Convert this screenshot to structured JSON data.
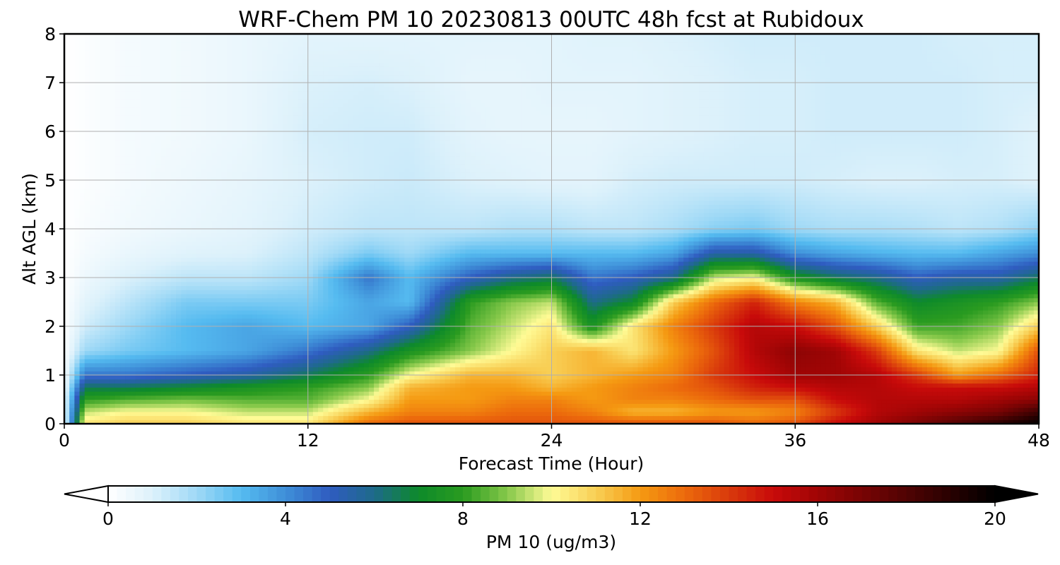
{
  "chart_data": {
    "type": "heatmap",
    "title": "WRF-Chem PM 10  20230813 00UTC 48h fcst at Rubidoux",
    "xlabel": "Forecast Time (Hour)",
    "ylabel": "Alt AGL (km)",
    "xlim": [
      0,
      48
    ],
    "ylim": [
      0,
      8
    ],
    "x_ticks": [
      "0",
      "12",
      "24",
      "36",
      "48"
    ],
    "y_ticks": [
      "0",
      "1",
      "2",
      "3",
      "4",
      "5",
      "6",
      "7",
      "8"
    ],
    "grid": true,
    "colorbar": {
      "label": "PM 10  (ug/m3)",
      "range": [
        0,
        20
      ],
      "ticks": [
        "0",
        "4",
        "8",
        "12",
        "16",
        "20"
      ],
      "extend": "both",
      "orientation": "horizontal",
      "colors": [
        {
          "v": 0,
          "c": "#ffffff"
        },
        {
          "v": 1,
          "c": "#dcf1fb"
        },
        {
          "v": 2,
          "c": "#9fd9f6"
        },
        {
          "v": 3,
          "c": "#55bbf0"
        },
        {
          "v": 4,
          "c": "#3f8fd8"
        },
        {
          "v": 5,
          "c": "#2f5cc0"
        },
        {
          "v": 6,
          "c": "#1e6a8a"
        },
        {
          "v": 7,
          "c": "#0d8a2a"
        },
        {
          "v": 8,
          "c": "#2a9b20"
        },
        {
          "v": 9,
          "c": "#86c84a"
        },
        {
          "v": 10,
          "c": "#fffb96"
        },
        {
          "v": 11,
          "c": "#f8cf55"
        },
        {
          "v": 12,
          "c": "#f59a12"
        },
        {
          "v": 13,
          "c": "#ec6a0c"
        },
        {
          "v": 14,
          "c": "#d93a0c"
        },
        {
          "v": 15,
          "c": "#c80a0a"
        },
        {
          "v": 16,
          "c": "#a00505"
        },
        {
          "v": 17,
          "c": "#780404"
        },
        {
          "v": 18,
          "c": "#500303"
        },
        {
          "v": 19,
          "c": "#280101"
        },
        {
          "v": 20,
          "c": "#000000"
        }
      ]
    },
    "x": [
      0,
      1,
      3,
      6,
      9,
      12,
      15,
      17,
      20,
      22,
      24,
      26,
      28,
      30,
      32,
      34,
      36,
      38,
      40,
      42,
      44,
      46,
      48
    ],
    "y": [
      0,
      0.25,
      0.5,
      0.75,
      1,
      1.5,
      2,
      2.5,
      3,
      3.5,
      4,
      5,
      6,
      7,
      8
    ],
    "z": [
      [
        0.5,
        10.5,
        11,
        11,
        10.5,
        10.5,
        13,
        13.5,
        13.5,
        13.5,
        13.5,
        13.5,
        13.5,
        13.5,
        13.5,
        13,
        13.5,
        15,
        16,
        17,
        18,
        19,
        20
      ],
      [
        0.5,
        9.5,
        10,
        10,
        9.5,
        9.5,
        11.5,
        12.5,
        12.5,
        13,
        13,
        12.5,
        11.5,
        11.5,
        12,
        12,
        12.5,
        14,
        15.5,
        16,
        16.5,
        17,
        18.5
      ],
      [
        0.5,
        8,
        8.5,
        8.8,
        8.5,
        8.5,
        10,
        12,
        12,
        12.5,
        12.5,
        12,
        12.5,
        12.5,
        13,
        13.5,
        13.5,
        15,
        15.5,
        15.5,
        15.5,
        16,
        16.5
      ],
      [
        0.3,
        6.5,
        6.5,
        7,
        7.5,
        8,
        9,
        11.5,
        12,
        12,
        11.5,
        12,
        12.5,
        13,
        13.5,
        14.5,
        15,
        15.5,
        15.5,
        15,
        15,
        15,
        15.5
      ],
      [
        0.2,
        4.5,
        4.5,
        5,
        5.5,
        6.5,
        8,
        10,
        11.5,
        11.5,
        11,
        11.5,
        12,
        12.5,
        14,
        15,
        16,
        16,
        15.5,
        14,
        12,
        13,
        14.5
      ],
      [
        0.1,
        2,
        2.5,
        3,
        3.5,
        4.5,
        6,
        7.5,
        9,
        10,
        11,
        11.5,
        10.5,
        12,
        13.5,
        15.5,
        16.5,
        16,
        14,
        10.5,
        9.5,
        10,
        13.5
      ],
      [
        0.05,
        1.2,
        2,
        3,
        3.5,
        3,
        3.5,
        5,
        8.5,
        9.5,
        10.5,
        7.5,
        10.5,
        12.5,
        14,
        15.5,
        15,
        13.5,
        11,
        8.2,
        8.3,
        9,
        11
      ],
      [
        0.05,
        0.8,
        1.5,
        2.5,
        2.5,
        2.5,
        3.5,
        3,
        8,
        9,
        9.5,
        6,
        7,
        11,
        13,
        14.5,
        12.5,
        11.5,
        8.5,
        7,
        7.5,
        8,
        9
      ],
      [
        0,
        0.5,
        1,
        1.5,
        1.5,
        2,
        4.5,
        3,
        5,
        6,
        6.5,
        4.5,
        5,
        6,
        9.5,
        10,
        7.5,
        6.5,
        6,
        5,
        5.5,
        5.5,
        6.5
      ],
      [
        0,
        0.3,
        0.6,
        0.9,
        1,
        1.5,
        2.5,
        2,
        3,
        3,
        3,
        3,
        3,
        3.5,
        5.5,
        5.5,
        4,
        3.5,
        3.2,
        3,
        3,
        3.5,
        4
      ],
      [
        0,
        0.2,
        0.4,
        0.6,
        0.8,
        1.2,
        1.5,
        1.5,
        1.5,
        1.7,
        1.7,
        1.5,
        1.5,
        1.8,
        2.3,
        2.5,
        2,
        1.8,
        1.8,
        1.7,
        1.5,
        1.7,
        2.2
      ],
      [
        0,
        0.1,
        0.3,
        0.5,
        0.7,
        1,
        1.2,
        1.3,
        1,
        0.9,
        0.8,
        0.8,
        1.1,
        1.2,
        1.2,
        1.2,
        1.2,
        1.1,
        1,
        1,
        1.1,
        1.1,
        0.9
      ],
      [
        0,
        0.1,
        0.3,
        0.4,
        0.6,
        1.1,
        1.2,
        1.2,
        0.8,
        0.7,
        0.7,
        0.7,
        0.8,
        0.9,
        1,
        1.1,
        1.1,
        1.2,
        1.2,
        1.2,
        1.2,
        1.1,
        0.9
      ],
      [
        0,
        0.1,
        0.3,
        0.4,
        0.6,
        1,
        1.1,
        1,
        0.7,
        0.7,
        0.8,
        0.8,
        0.8,
        0.9,
        1,
        1.1,
        1.1,
        1.2,
        1.2,
        1.2,
        1.2,
        1.1,
        1.1
      ],
      [
        0,
        0.1,
        0.3,
        0.4,
        0.6,
        0.8,
        0.8,
        0.8,
        0.8,
        0.8,
        0.8,
        0.9,
        0.9,
        1,
        1.1,
        1.2,
        1.2,
        1.2,
        1.2,
        1.2,
        1.1,
        1.1,
        1.1
      ]
    ]
  }
}
